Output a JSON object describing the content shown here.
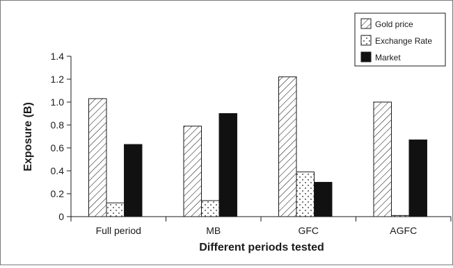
{
  "chart_data": {
    "type": "bar",
    "categories": [
      "Full period",
      "MB",
      "GFC",
      "AGFC"
    ],
    "series": [
      {
        "name": "Gold price",
        "values": [
          1.03,
          0.79,
          1.22,
          1.0
        ],
        "pattern": "hatch"
      },
      {
        "name": "Exchange Rate",
        "values": [
          0.12,
          0.14,
          0.39,
          0.01
        ],
        "pattern": "dots"
      },
      {
        "name": "Market",
        "values": [
          0.63,
          0.9,
          0.3,
          0.67
        ],
        "pattern": "solid"
      }
    ],
    "xlabel": "Different periods tested",
    "ylabel": "Exposure (B)",
    "ylim": [
      0,
      1.4
    ],
    "yticks": [
      "0",
      "0.2",
      "0.4",
      "0.6",
      "0.8",
      "1.0",
      "1.2",
      "1.4"
    ],
    "grid": false,
    "legend_position": "top-right",
    "colors": {
      "fill": "#ffffff",
      "stroke": "#1a1a1a",
      "solid": "#111111"
    }
  }
}
